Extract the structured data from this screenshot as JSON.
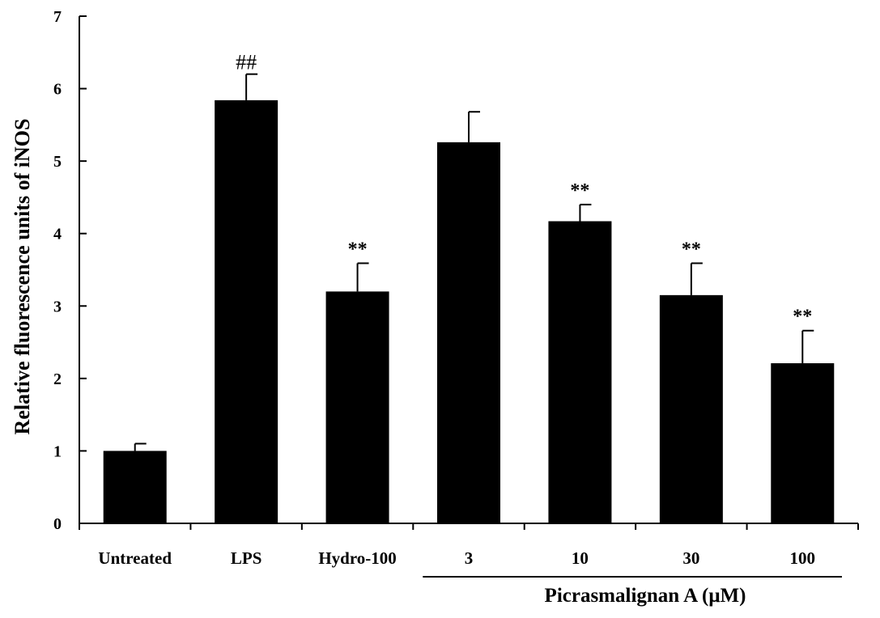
{
  "chart_data": {
    "type": "bar",
    "categories": [
      "Untreated",
      "LPS",
      "Hydro-100",
      "3",
      "10",
      "30",
      "100"
    ],
    "values": [
      1.0,
      5.84,
      3.2,
      5.26,
      4.17,
      3.15,
      2.21
    ],
    "errors": [
      0.1,
      0.36,
      0.39,
      0.42,
      0.23,
      0.44,
      0.45
    ],
    "annotations": [
      "",
      "##",
      "**",
      "",
      "**",
      "**",
      "**"
    ],
    "ylabel": "Relative fluorescence units of iNOS",
    "xlabel": "",
    "ylim": [
      0,
      7
    ],
    "yticks": [
      0,
      1,
      2,
      3,
      4,
      5,
      6,
      7
    ],
    "group_label": "Picrasmalignan A (μM)",
    "group_categories": [
      "3",
      "10",
      "30",
      "100"
    ],
    "bar_color": "#000000",
    "grid": false,
    "legend": false
  }
}
